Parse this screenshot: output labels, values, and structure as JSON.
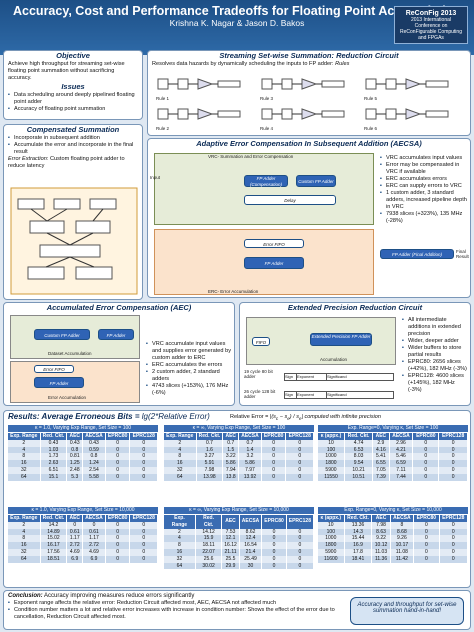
{
  "header": {
    "title": "Accuracy, Cost and Performance Tradeoffs for Floating Point Accumulation",
    "authors": "Krishna K. Nagar & Jason D. Bakos",
    "logo": "ReConFig 2013",
    "logo_sub": "2013 International Conference on ReConFigurable Computing and FPGAs"
  },
  "objective": {
    "title": "Objective",
    "text": "Achieve high throughput for streaming set-wise floating point summation without sacrificing accuracy."
  },
  "issues": {
    "title": "Issues",
    "items": [
      "Data scheduling around deeply pipelined floating point adder",
      "Accuracy of floating point summation"
    ]
  },
  "comp": {
    "title": "Compensated Summation",
    "items": [
      "Incorporate in subsequent addition",
      "Accumulate the error and incorporate in the final result"
    ],
    "note_em": "Error Extraction",
    "note": ": Custom floating point adder to reduce latency"
  },
  "ssrc": {
    "title": "Streaming Set-wise Summation: Reduction Circuit",
    "text": "Resolves data hazards by dynamically scheduling the inputs to FP adder:",
    "rules_word": "Rules",
    "rules": [
      "Rule 1",
      "Rule 2",
      "Rule 3",
      "Rule 4",
      "Rule 5",
      "Rule 6"
    ]
  },
  "aecsa": {
    "title": "Adaptive Error Compensation In Subsequent Addition (AECSA)",
    "vrc_label": "VRC- Summation and Error Compensation",
    "erc_label": "ERC- Error Accumulation",
    "fp_comp": "FP Adder (Compensation)",
    "custom": "Custom FP Adder",
    "delay": "Delay",
    "fifo": "Error FIFO",
    "fp_adder": "FP Adder",
    "final_add": "FP Adder (Final Addition)",
    "input": "Input",
    "final": "Final Result",
    "items": [
      "VRC accumulates input values",
      "Error may be compensated in VRC if available",
      "ERC accumulates errors",
      "ERC can supply errors to VRC",
      "1 custom adder, 3 standard adders, increased pipeline depth in VRC",
      "7938 slices (+323%), 135 MHz (-28%)"
    ]
  },
  "aec": {
    "title": "Accumulated Error Compensation (AEC)",
    "custom": "Custom FP Adder",
    "fp": "FP Adder",
    "fifo": "Error FIFO",
    "dacc": "Dataset Accumulation",
    "eacc": "Error Accumulation",
    "items": [
      "VRC accumulate input values and supplies error generated by custom adder to ERC",
      "ERC accumulates the errors",
      "2 custom adder, 2 standard adders",
      "4743 slices (+153%), 176 MHz (-6%)"
    ]
  },
  "eprc": {
    "title": "Extended Precision Reduction Circuit",
    "fifo": "FIFO",
    "adder": "Extended Precision FP Adder",
    "acc": "Accumulation",
    "bit80": "19 cycle 80 bit adder",
    "bit128": "26 cycle 128 bit adder",
    "sign": "Sign",
    "exp": "Exponent",
    "sig": "Significand",
    "items": [
      "All intermediate additions in extended precision",
      "Wider, deeper adder",
      "Wider buffers to store partial results",
      "EPRC80: 2656 slices (+42%), 182 MHz (-3%)",
      "EPRC128: 4600 slices (+145%), 182 MHz (-3%)"
    ]
  },
  "results": {
    "title": "Results: Average Erroneous Bits = ",
    "formula": "lg(2*Relative Error)",
    "rel_label": "Relative Error =",
    "computed": "computed with infinite precision"
  },
  "t1": {
    "caption": "κ = 1.0, Varying Exp Range, Set Size = 100",
    "head": [
      "Exp. Range",
      "Red. Ckt.",
      "AEC",
      "AECSA",
      "EPRC80",
      "EPRC128"
    ],
    "rows": [
      [
        "2",
        "0.43",
        "0.43",
        "0.43",
        "0",
        "0"
      ],
      [
        "4",
        "1.03",
        "0.8",
        "0.59",
        "0",
        "0"
      ],
      [
        "8",
        "1.73",
        "0.81",
        "0.8",
        "0",
        "0"
      ],
      [
        "16",
        "2.63",
        "1.25",
        "1.24",
        "0",
        "0"
      ],
      [
        "32",
        "6.51",
        "2.48",
        "2.54",
        "0",
        "0"
      ],
      [
        "64",
        "15.1",
        "5.3",
        "5.58",
        "0",
        "0"
      ]
    ]
  },
  "t2": {
    "caption": "κ = ∞, Varying Exp Range, Set Size = 100",
    "head": [
      "Exp. Range",
      "Red. Ckt.",
      "AEC",
      "AECSA",
      "EPRC80",
      "EPRC128"
    ],
    "rows": [
      [
        "2",
        "0.7",
        "0.7",
        "0.7",
        "0",
        "0"
      ],
      [
        "4",
        "1.6",
        "1.5",
        "1.4",
        "0",
        "0"
      ],
      [
        "8",
        "3.27",
        "3.22",
        "3.2",
        "0",
        "0"
      ],
      [
        "16",
        "5.91",
        "5.86",
        "5.86",
        "0",
        "0"
      ],
      [
        "32",
        "7.98",
        "7.94",
        "7.97",
        "0",
        "0"
      ],
      [
        "64",
        "13.98",
        "13.8",
        "13.92",
        "0",
        "0"
      ]
    ]
  },
  "t3": {
    "caption": "Exp. Range=0, Varying κ, Set Size = 100",
    "head": [
      "κ (appx.)",
      "Red. Ckt.",
      "AEC",
      "AECSA",
      "EPRC80",
      "EPRC128"
    ],
    "rows": [
      [
        "10",
        "4.74",
        "2.9",
        "2.96",
        "0",
        "0"
      ],
      [
        "100",
        "6.53",
        "4.16",
        "4.21",
        "0",
        "0"
      ],
      [
        "1000",
        "8.03",
        "5.41",
        "5.46",
        "0",
        "0"
      ],
      [
        "1800",
        "9.54",
        "6.55",
        "6.59",
        "0",
        "0"
      ],
      [
        "5900",
        "10.21",
        "7.05",
        "7.11",
        "0",
        "0"
      ],
      [
        "11550",
        "10.51",
        "7.39",
        "7.44",
        "0",
        "0"
      ]
    ]
  },
  "t4": {
    "caption": "κ = 1.0, Varying Exp Range, Set Size = 10,000",
    "head": [
      "Exp. Range",
      "Red. Ckt.",
      "AEC",
      "AECSA",
      "EPRC80",
      "EPRC128"
    ],
    "rows": [
      [
        "2",
        "14.2",
        "0",
        "0",
        "0",
        "0"
      ],
      [
        "4",
        "14.89",
        "0.61",
        "0.61",
        "0",
        "0"
      ],
      [
        "8",
        "15.02",
        "1.17",
        "1.17",
        "0",
        "0"
      ],
      [
        "16",
        "16.17",
        "2.72",
        "2.72",
        "0",
        "0"
      ],
      [
        "32",
        "17.56",
        "4.69",
        "4.69",
        "0",
        "0"
      ],
      [
        "64",
        "18.51",
        "6.9",
        "6.9",
        "0",
        "0"
      ]
    ]
  },
  "t5": {
    "caption": "κ = ∞, Varying Exp Range, Set Size = 10,000",
    "head": [
      "Exp. Range",
      "Red. Ckt.",
      "AEC",
      "AECSA",
      "EPRC80",
      "EPRC128"
    ],
    "rows": [
      [
        "2",
        "14.12",
        "7.53",
        "8.62",
        "0",
        "0"
      ],
      [
        "4",
        "15.9",
        "12.1",
        "12.4",
        "0",
        "0"
      ],
      [
        "8",
        "18.11",
        "16.12",
        "16.54",
        "0",
        "0"
      ],
      [
        "16",
        "22.07",
        "21.11",
        "21.4",
        "0",
        "0"
      ],
      [
        "32",
        "25.6",
        "25.5",
        "25.49",
        "0",
        "0"
      ],
      [
        "64",
        "30.02",
        "29.9",
        "30",
        "0",
        "0"
      ]
    ]
  },
  "t6": {
    "caption": "Exp. Range=0, Varying κ, Set Size = 10,000",
    "head": [
      "κ (appx.)",
      "Red. Ckt.",
      "AEC",
      "AECSA",
      "EPRC80",
      "EPRC128"
    ],
    "rows": [
      [
        "10",
        "13.36",
        "7.98",
        "8",
        "0",
        "0"
      ],
      [
        "100",
        "14.3",
        "8.63",
        "8.68",
        "0",
        "0"
      ],
      [
        "1000",
        "15.44",
        "9.22",
        "9.26",
        "0",
        "0"
      ],
      [
        "1800",
        "16.9",
        "10.12",
        "10.17",
        "0",
        "0"
      ],
      [
        "5900",
        "17.8",
        "11.03",
        "11.08",
        "0",
        "0"
      ],
      [
        "11600",
        "18.41",
        "11.36",
        "11.42",
        "0",
        "0"
      ]
    ]
  },
  "conclusion": {
    "label": "Conclusion:",
    "text": " Accuracy improving measures reduce errors significantly",
    "items": [
      "Exponent range affects the relative error: Reduction Circuit affected most, AEC, AECSA not affected much",
      "Condition number matters a lot and relative error increases with increase in condition number: Shows the effect of the error due to cancellation, Reduction Circuit affected most."
    ],
    "tagline": "Accuracy and throughput for set-wise summation hand-in-hand!"
  }
}
